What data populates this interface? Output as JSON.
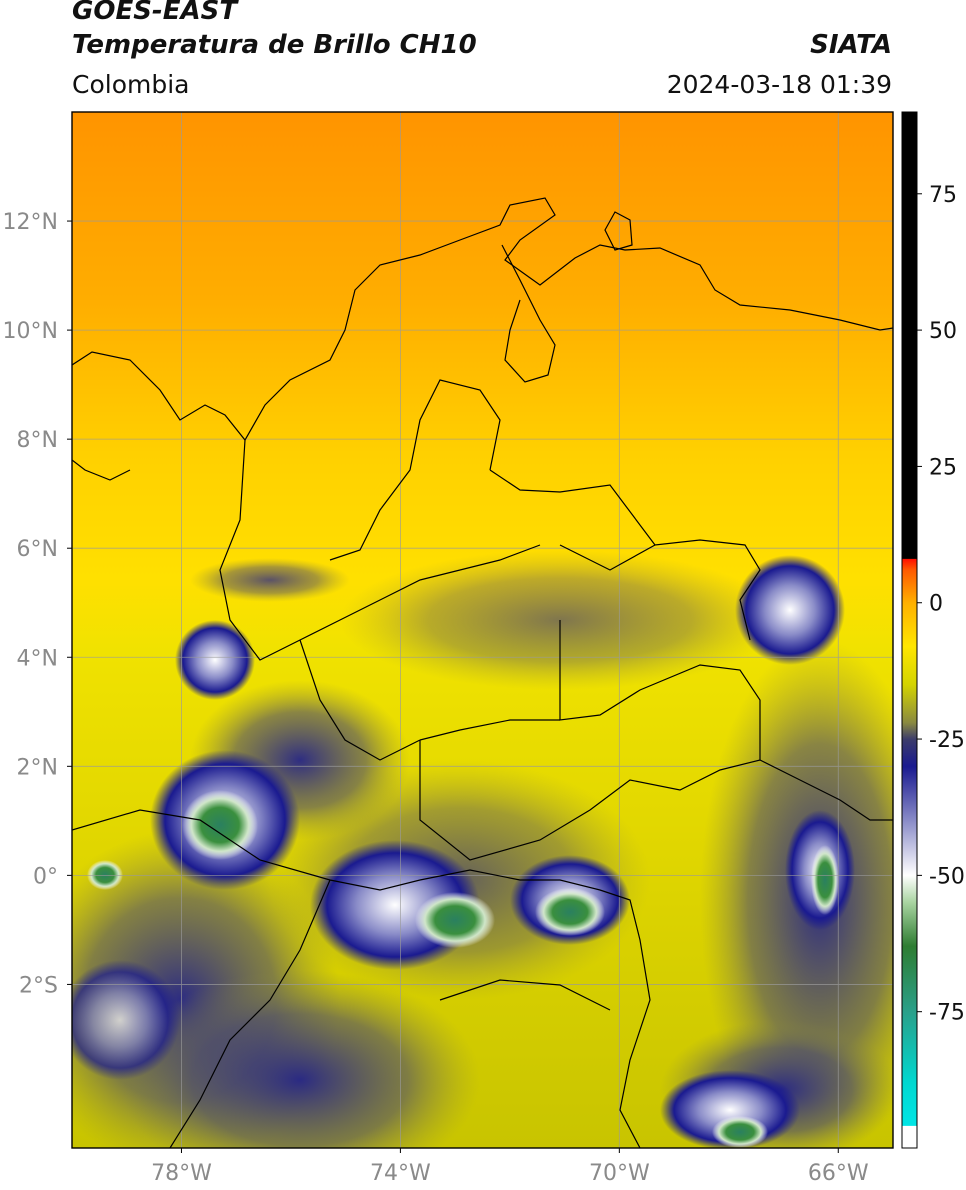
{
  "header": {
    "satellite": "GOES-EAST",
    "product": "Temperatura de Brillo CH10",
    "organization": "SIATA",
    "region": "Colombia",
    "datetime": "2024-03-18 01:39"
  },
  "map": {
    "lon_range": [
      -80,
      -65
    ],
    "lat_range": [
      -5,
      14
    ],
    "lon_ticks": [
      "78°W",
      "74°W",
      "70°W",
      "66°W"
    ],
    "lon_tick_values": [
      -78,
      -74,
      -70,
      -66
    ],
    "lat_ticks": [
      "12°N",
      "10°N",
      "8°N",
      "6°N",
      "4°N",
      "2°N",
      "0°",
      "2°S"
    ],
    "lat_tick_values": [
      12,
      10,
      8,
      6,
      4,
      2,
      0,
      -2
    ],
    "gridlines": true
  },
  "colorbar": {
    "range": [
      -100,
      90
    ],
    "tick_labels": [
      "75",
      "50",
      "25",
      "0",
      "-25",
      "-50",
      "-75"
    ],
    "tick_values": [
      75,
      50,
      25,
      0,
      -25,
      -50,
      -75
    ],
    "stops": [
      {
        "v": -100,
        "c": "#ffffff"
      },
      {
        "v": -96,
        "c": "#ffffff"
      },
      {
        "v": -95.9,
        "c": "#00e5e5"
      },
      {
        "v": -88,
        "c": "#00d8d0"
      },
      {
        "v": -75,
        "c": "#2aa08a"
      },
      {
        "v": -63,
        "c": "#2e7d32"
      },
      {
        "v": -55,
        "c": "#a8d4a0"
      },
      {
        "v": -50,
        "c": "#ffffff"
      },
      {
        "v": -40,
        "c": "#8a8cc8"
      },
      {
        "v": -30,
        "c": "#1a1a90"
      },
      {
        "v": -25,
        "c": "#3d3d6a"
      },
      {
        "v": -22,
        "c": "#8a8a40"
      },
      {
        "v": -15,
        "c": "#d4d400"
      },
      {
        "v": -8,
        "c": "#ffe600"
      },
      {
        "v": 0,
        "c": "#ffb000"
      },
      {
        "v": 6,
        "c": "#ff5a00"
      },
      {
        "v": 8,
        "c": "#ff1000"
      },
      {
        "v": 8.1,
        "c": "#000000"
      },
      {
        "v": 90,
        "c": "#000000"
      }
    ]
  }
}
